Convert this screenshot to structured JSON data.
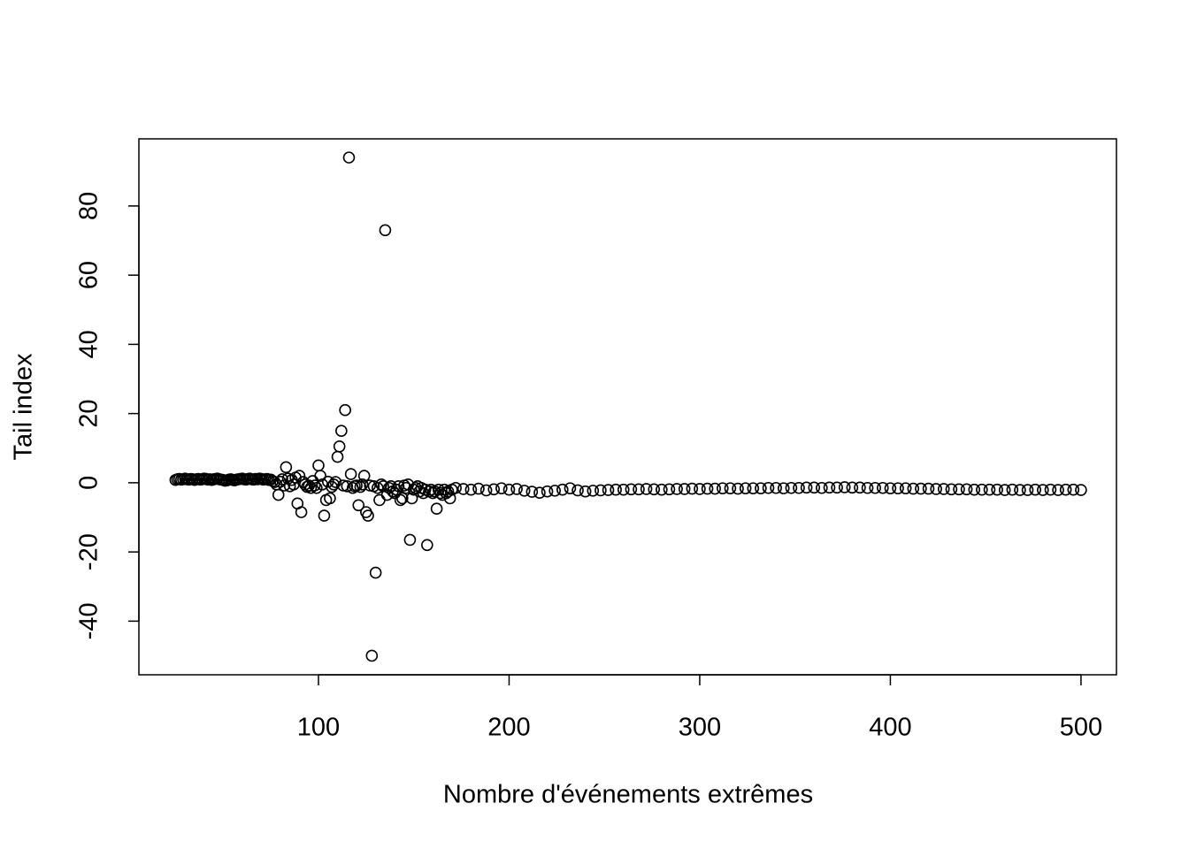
{
  "chart_data": {
    "type": "scatter",
    "x_label": "Nombre d'événements extrêmes",
    "y_label": "Tail index",
    "xlim": [
      5.8,
      518.6
    ],
    "ylim": [
      -55.5,
      99.4
    ],
    "xticks": [
      100,
      200,
      300,
      400,
      500
    ],
    "yticks": [
      -40,
      -20,
      0,
      20,
      40,
      60,
      80
    ],
    "marker": "open-circle",
    "color": "#000000",
    "x": [
      25,
      26,
      27,
      28,
      29,
      30,
      31,
      32,
      33,
      34,
      35,
      36,
      37,
      38,
      39,
      40,
      41,
      42,
      43,
      44,
      45,
      46,
      47,
      48,
      49,
      50,
      51,
      52,
      53,
      54,
      55,
      56,
      57,
      58,
      59,
      60,
      61,
      62,
      63,
      64,
      65,
      66,
      67,
      68,
      69,
      70,
      71,
      72,
      73,
      74,
      75,
      76,
      77,
      78,
      79,
      80,
      81,
      82,
      83,
      84,
      85,
      86,
      87,
      88,
      89,
      90,
      91,
      92,
      93,
      94,
      95,
      96,
      97,
      98,
      99,
      100,
      101,
      102,
      103,
      104,
      105,
      106,
      107,
      108,
      109,
      110,
      111,
      112,
      113,
      114,
      115,
      116,
      117,
      118,
      119,
      120,
      121,
      122,
      123,
      124,
      125,
      126,
      127,
      128,
      129,
      130,
      131,
      132,
      133,
      134,
      135,
      136,
      137,
      138,
      139,
      140,
      141,
      142,
      143,
      144,
      145,
      146,
      147,
      148,
      149,
      150,
      151,
      152,
      153,
      154,
      155,
      156,
      157,
      158,
      159,
      160,
      161,
      162,
      163,
      164,
      165,
      166,
      167,
      168,
      169,
      170,
      172,
      176,
      180,
      184,
      188,
      192,
      196,
      200,
      204,
      208,
      212,
      216,
      220,
      224,
      228,
      232,
      236,
      240,
      244,
      248,
      252,
      256,
      260,
      264,
      268,
      272,
      276,
      280,
      284,
      288,
      292,
      296,
      300,
      304,
      308,
      312,
      316,
      320,
      324,
      328,
      332,
      336,
      340,
      344,
      348,
      352,
      356,
      360,
      364,
      368,
      372,
      376,
      380,
      384,
      388,
      392,
      396,
      400,
      404,
      408,
      412,
      416,
      420,
      424,
      428,
      432,
      436,
      440,
      444,
      448,
      452,
      456,
      460,
      464,
      468,
      472,
      476,
      480,
      484,
      488,
      492,
      496,
      500
    ],
    "y": [
      0.8,
      1.0,
      1.1,
      0.9,
      1.0,
      1.2,
      1.0,
      0.9,
      1.1,
      1.0,
      0.8,
      1.0,
      1.1,
      0.9,
      1.0,
      1.2,
      1.1,
      0.9,
      1.0,
      0.8,
      1.0,
      1.1,
      1.2,
      1.0,
      0.9,
      0.8,
      0.6,
      0.7,
      0.9,
      1.0,
      0.8,
      0.7,
      0.9,
      1.0,
      1.1,
      1.2,
      1.0,
      0.9,
      1.1,
      1.2,
      1.0,
      0.9,
      1.1,
      1.0,
      1.2,
      1.1,
      0.9,
      1.0,
      1.1,
      0.8,
      0.9,
      0.5,
      0.2,
      -0.5,
      -3.5,
      0.3,
      1.0,
      -0.8,
      4.5,
      1.2,
      -1.0,
      0.8,
      -0.5,
      1.5,
      -6,
      2.0,
      -8.5,
      0.2,
      -0.5,
      -1.2,
      -0.8,
      -1.5,
      0.5,
      -0.8,
      -1.5,
      5.0,
      2.0,
      -0.5,
      -9.5,
      -5.0,
      0.3,
      -4.5,
      -1.2,
      -0.5,
      0.2,
      7.5,
      10.5,
      15.0,
      -0.8,
      21.0,
      -1.0,
      94,
      2.5,
      -1.5,
      -1.0,
      -0.8,
      -6.5,
      -1.2,
      -0.5,
      2.0,
      -8.5,
      -9.5,
      -0.8,
      -50,
      -1.0,
      -26,
      -1.5,
      -5.0,
      -0.5,
      -1.0,
      73,
      -3.5,
      -1.5,
      -1.0,
      -2.5,
      -3.0,
      -2.0,
      -1.0,
      -5.0,
      -4.5,
      -0.8,
      -1.5,
      -0.5,
      -16.5,
      -4.5,
      -2.0,
      -1.5,
      -1.0,
      -2.5,
      -1.5,
      -3.0,
      -2.0,
      -18,
      -2.5,
      -2.0,
      -3.0,
      -2.5,
      -7.5,
      -2.0,
      -3.0,
      -3.5,
      -2.0,
      -3.0,
      -2.5,
      -4.5,
      -2.0,
      -1.5,
      -1.8,
      -2.0,
      -1.7,
      -2.2,
      -1.9,
      -1.6,
      -2.0,
      -1.8,
      -2.3,
      -2.6,
      -2.9,
      -2.5,
      -2.3,
      -2.0,
      -1.6,
      -2.2,
      -2.5,
      -2.3,
      -2.2,
      -2.1,
      -2.0,
      -2.0,
      -1.9,
      -1.9,
      -1.8,
      -1.9,
      -2.0,
      -1.9,
      -1.8,
      -1.8,
      -1.7,
      -1.8,
      -1.7,
      -1.7,
      -1.6,
      -1.6,
      -1.7,
      -1.6,
      -1.6,
      -1.6,
      -1.5,
      -1.5,
      -1.6,
      -1.5,
      -1.5,
      -1.4,
      -1.4,
      -1.5,
      -1.4,
      -1.4,
      -1.3,
      -1.4,
      -1.4,
      -1.5,
      -1.5,
      -1.5,
      -1.6,
      -1.6,
      -1.6,
      -1.7,
      -1.7,
      -1.7,
      -1.8,
      -1.8,
      -1.9,
      -1.9,
      -1.9,
      -2.0,
      -2.0,
      -2.0,
      -2.0,
      -2.1,
      -2.0,
      -2.1,
      -2.1,
      -2.0,
      -2.1,
      -2.0,
      -2.1,
      -2.0,
      -2.0,
      -2.1
    ]
  }
}
